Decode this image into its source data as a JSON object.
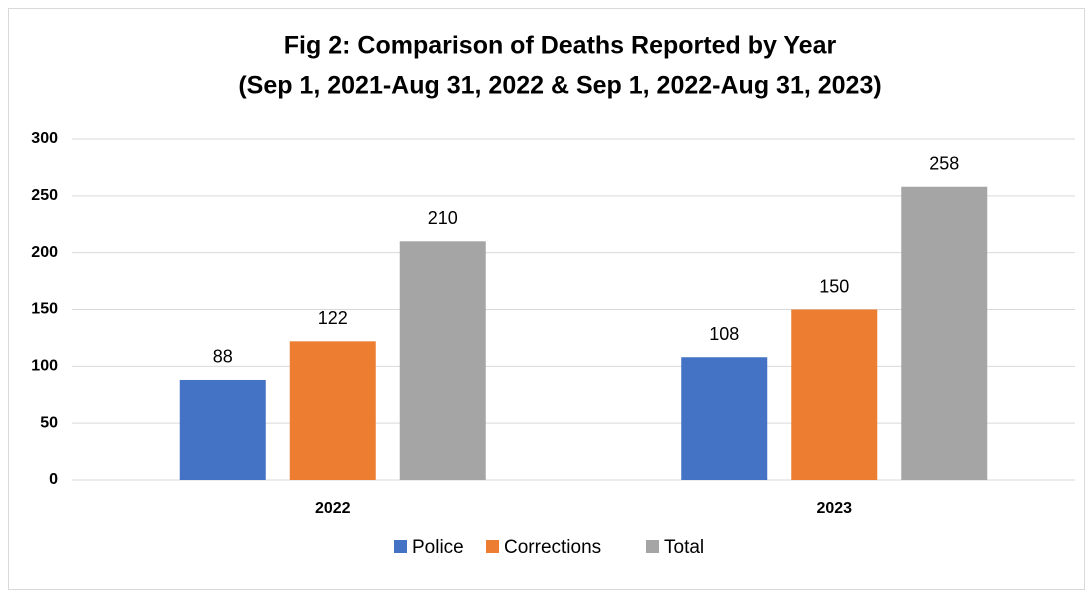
{
  "chart_data": {
    "type": "bar",
    "title": "Fig 2: Comparison of Deaths Reported by Year",
    "subtitle": "(Sep 1, 2021-Aug 31, 2022 & Sep 1, 2022-Aug 31, 2023)",
    "categories": [
      "2022",
      "2023"
    ],
    "series": [
      {
        "name": "Police",
        "color": "#4472c4",
        "values": [
          88,
          108
        ]
      },
      {
        "name": "Corrections",
        "color": "#ed7d31",
        "values": [
          122,
          150
        ]
      },
      {
        "name": "Total",
        "color": "#a5a5a5",
        "values": [
          210,
          258
        ]
      }
    ],
    "ylim": [
      0,
      300
    ],
    "yticks": [
      0,
      50,
      100,
      150,
      200,
      250,
      300
    ],
    "grid": true,
    "legend": "bottom"
  }
}
